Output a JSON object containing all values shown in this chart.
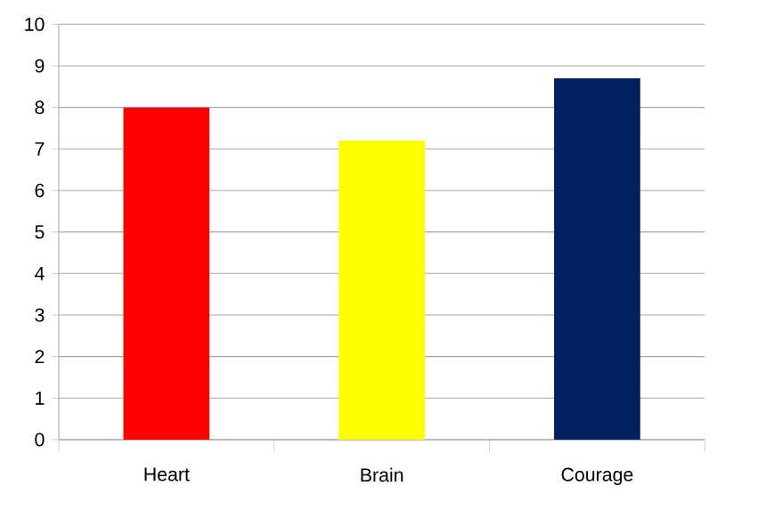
{
  "chart_data": {
    "type": "bar",
    "categories": [
      "Heart",
      "Brain",
      "Courage"
    ],
    "values": [
      8,
      7.2,
      8.7
    ],
    "colors": [
      "#ff0000",
      "#ffff00",
      "#002060"
    ],
    "ylim": [
      0,
      10
    ],
    "yticks": [
      0,
      1,
      2,
      3,
      4,
      5,
      6,
      7,
      8,
      9,
      10
    ],
    "grid": "y"
  }
}
